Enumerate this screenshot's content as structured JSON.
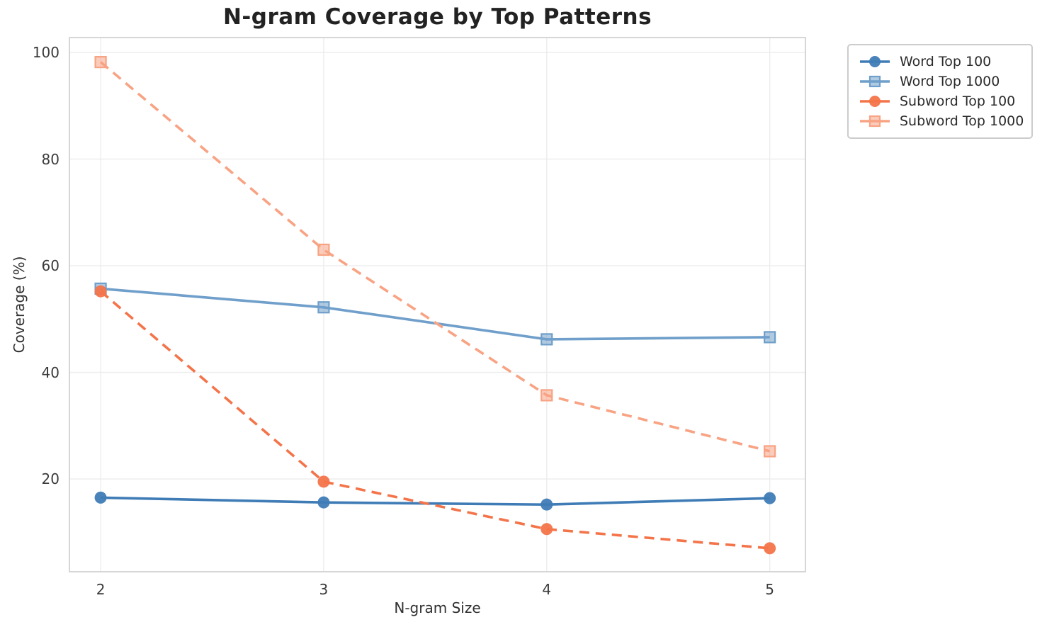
{
  "chart_data": {
    "type": "line",
    "title": "N-gram Coverage by Top Patterns",
    "xlabel": "N-gram Size",
    "ylabel": "Coverage (%)",
    "x": [
      2,
      3,
      4,
      5
    ],
    "xtick_labels": [
      "2",
      "3",
      "4",
      "5"
    ],
    "ytick_values": [
      20,
      40,
      60,
      80,
      100
    ],
    "ytick_labels": [
      "20",
      "40",
      "60",
      "80",
      "100"
    ],
    "xlim": [
      1.86,
      5.16
    ],
    "ylim": [
      2.6,
      102.8
    ],
    "grid": true,
    "legend_position": "outside-upper-right",
    "series": [
      {
        "name": "Word Top 100",
        "values": [
          16.5,
          15.6,
          15.2,
          16.4
        ],
        "color": "#3f7cb6",
        "marker": "circle",
        "line_style": "solid"
      },
      {
        "name": "Word Top 1000",
        "values": [
          55.7,
          52.2,
          46.2,
          46.6
        ],
        "color": "#6f9fca",
        "marker": "square",
        "line_style": "solid"
      },
      {
        "name": "Subword Top 100",
        "values": [
          55.2,
          19.5,
          10.6,
          7.0
        ],
        "color": "#f4744a",
        "marker": "circle",
        "line_style": "dashed"
      },
      {
        "name": "Subword Top 1000",
        "values": [
          98.2,
          63.0,
          35.7,
          25.2
        ],
        "color": "#f8a383",
        "marker": "square",
        "line_style": "dashed"
      }
    ],
    "style": {
      "grid_color": "#ececec",
      "spine_color": "#d2d2d2",
      "title_color": "#222222",
      "tick_color": "#3a3a3a"
    }
  }
}
